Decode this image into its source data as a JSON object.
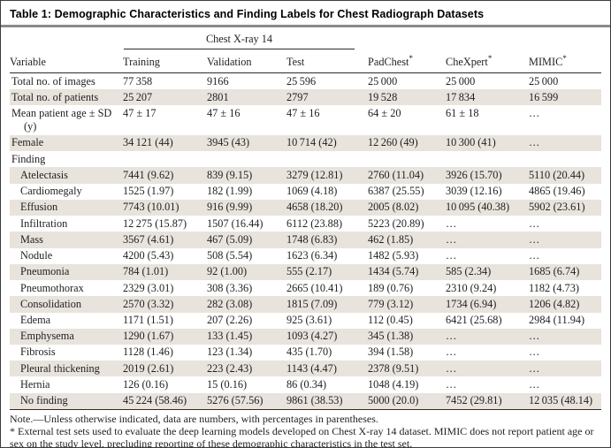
{
  "meta": {
    "title": "Table 1: Demographic Characteristics and Finding Labels for Chest Radiograph Datasets"
  },
  "colors": {
    "row_shade": "#e8e3dc",
    "rule_gray": "#8a8a8a",
    "rule_dark": "#2b2b2b",
    "border": "#3c3c3c",
    "bottom_rule": "#606060"
  },
  "header": {
    "spanner": "Chest X-ray 14",
    "variable_label": "Variable",
    "columns": [
      {
        "label": "Training",
        "sup": ""
      },
      {
        "label": "Validation",
        "sup": ""
      },
      {
        "label": "Test",
        "sup": ""
      },
      {
        "label": "PadChest",
        "sup": "*"
      },
      {
        "label": "CheXpert",
        "sup": "*"
      },
      {
        "label": "MIMIC",
        "sup": "*"
      }
    ]
  },
  "rows": [
    {
      "label": "Total no. of images",
      "indent": false,
      "section": false,
      "cells": [
        "77 358",
        "9166",
        "25 596",
        "25 000",
        "25 000",
        "25 000"
      ]
    },
    {
      "label": "Total no. of patients",
      "indent": false,
      "section": false,
      "cells": [
        "25 207",
        "2801",
        "2797",
        "19 528",
        "17 834",
        "16 599"
      ]
    },
    {
      "label": "Mean patient age ± SD (y)",
      "indent": false,
      "section": false,
      "cells": [
        "47 ± 17",
        "47 ± 16",
        "47 ± 16",
        "64 ± 20",
        "61 ± 18",
        "…"
      ]
    },
    {
      "label": "Female",
      "indent": false,
      "section": false,
      "cells": [
        "34 121 (44)",
        "3945 (43)",
        "10 714 (42)",
        "12 260 (49)",
        "10 300 (41)",
        "…"
      ]
    },
    {
      "label": "Finding",
      "indent": false,
      "section": true,
      "cells": [
        "",
        "",
        "",
        "",
        "",
        ""
      ]
    },
    {
      "label": "Atelectasis",
      "indent": true,
      "section": false,
      "cells": [
        "7441 (9.62)",
        "839 (9.15)",
        "3279 (12.81)",
        "2760 (11.04)",
        "3926 (15.70)",
        "5110 (20.44)"
      ]
    },
    {
      "label": "Cardiomegaly",
      "indent": true,
      "section": false,
      "cells": [
        "1525 (1.97)",
        "182 (1.99)",
        "1069 (4.18)",
        "6387 (25.55)",
        "3039 (12.16)",
        "4865 (19.46)"
      ]
    },
    {
      "label": "Effusion",
      "indent": true,
      "section": false,
      "cells": [
        "7743 (10.01)",
        "916 (9.99)",
        "4658 (18.20)",
        "2005 (8.02)",
        "10 095 (40.38)",
        "5902 (23.61)"
      ]
    },
    {
      "label": "Infiltration",
      "indent": true,
      "section": false,
      "cells": [
        "12 275 (15.87)",
        "1507 (16.44)",
        "6112 (23.88)",
        "5223 (20.89)",
        "…",
        "…"
      ]
    },
    {
      "label": "Mass",
      "indent": true,
      "section": false,
      "cells": [
        "3567 (4.61)",
        "467 (5.09)",
        "1748 (6.83)",
        "462 (1.85)",
        "…",
        "…"
      ]
    },
    {
      "label": "Nodule",
      "indent": true,
      "section": false,
      "cells": [
        "4200 (5.43)",
        "508 (5.54)",
        "1623 (6.34)",
        "1482 (5.93)",
        "…",
        "…"
      ]
    },
    {
      "label": "Pneumonia",
      "indent": true,
      "section": false,
      "cells": [
        "784 (1.01)",
        "92 (1.00)",
        "555 (2.17)",
        "1434 (5.74)",
        "585 (2.34)",
        "1685 (6.74)"
      ]
    },
    {
      "label": "Pneumothorax",
      "indent": true,
      "section": false,
      "cells": [
        "2329 (3.01)",
        "308 (3.36)",
        "2665 (10.41)",
        "189 (0.76)",
        "2310 (9.24)",
        "1182 (4.73)"
      ]
    },
    {
      "label": "Consolidation",
      "indent": true,
      "section": false,
      "cells": [
        "2570 (3.32)",
        "282 (3.08)",
        "1815 (7.09)",
        "779 (3.12)",
        "1734 (6.94)",
        "1206 (4.82)"
      ]
    },
    {
      "label": "Edema",
      "indent": true,
      "section": false,
      "cells": [
        "1171 (1.51)",
        "207 (2.26)",
        "925 (3.61)",
        "112 (0.45)",
        "6421 (25.68)",
        "2984 (11.94)"
      ]
    },
    {
      "label": "Emphysema",
      "indent": true,
      "section": false,
      "cells": [
        "1290 (1.67)",
        "133 (1.45)",
        "1093 (4.27)",
        "345 (1.38)",
        "…",
        "…"
      ]
    },
    {
      "label": "Fibrosis",
      "indent": true,
      "section": false,
      "cells": [
        "1128 (1.46)",
        "123 (1.34)",
        "435 (1.70)",
        "394 (1.58)",
        "…",
        "…"
      ]
    },
    {
      "label": "Pleural thickening",
      "indent": true,
      "section": false,
      "cells": [
        "2019 (2.61)",
        "223 (2.43)",
        "1143 (4.47)",
        "2378 (9.51)",
        "…",
        "…"
      ]
    },
    {
      "label": "Hernia",
      "indent": true,
      "section": false,
      "cells": [
        "126 (0.16)",
        "15 (0.16)",
        "86 (0.34)",
        "1048 (4.19)",
        "…",
        "…"
      ]
    },
    {
      "label": "No finding",
      "indent": true,
      "section": false,
      "cells": [
        "45 224 (58.46)",
        "5276 (57.56)",
        "9861 (38.53)",
        "5000 (20.0)",
        "7452 (29.81)",
        "12 035 (48.14)"
      ]
    }
  ],
  "footnotes": {
    "note": "Note.—Unless otherwise indicated, data are numbers, with percentages in parentheses.",
    "asterisk": "* External test sets used to evaluate the deep learning models developed on Chest X-ray 14 dataset. MIMIC does not report patient age or sex on the study level, precluding reporting of these demographic characteristics in the test set."
  }
}
